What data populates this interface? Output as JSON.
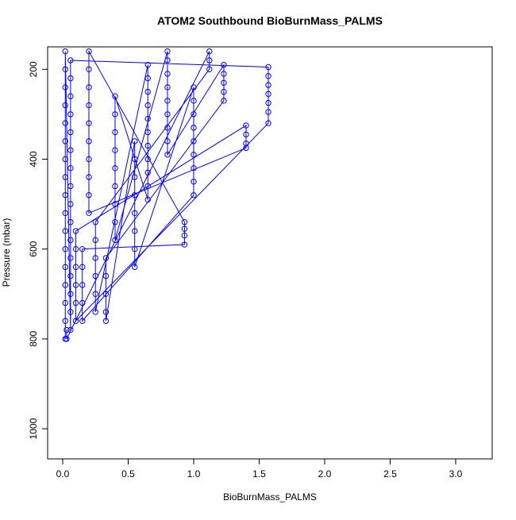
{
  "chart_data": {
    "type": "line",
    "title": "ATOM2 Southbound BioBurnMass_PALMS",
    "x_label": "BioBurnMass_PALMS",
    "y_label": "Pressure (mbar)",
    "xlim": [
      -0.115,
      3.279
    ],
    "ylim": [
      1067,
      150
    ],
    "xticks": [
      {
        "value": 0,
        "label": "0.0"
      },
      0.5,
      {
        "value": 1,
        "label": "1.0"
      },
      1.5,
      {
        "value": 2,
        "label": "2.0"
      },
      2.5,
      {
        "value": 3,
        "label": "3.0"
      }
    ],
    "yticks": [
      200,
      400,
      600,
      800,
      1000
    ],
    "x": [
      0.02,
      0.02,
      0.02,
      0.02,
      0.02,
      0.02,
      0.02,
      0.02,
      0.02,
      0.02,
      0.02,
      0.02,
      0.02,
      0.02,
      0.02,
      0.02,
      0.02,
      0.06,
      0.06,
      0.06,
      0.06,
      0.06,
      0.06,
      0.06,
      0.06,
      0.06,
      0.06,
      0.06,
      0.06,
      0.06,
      0.06,
      0.06,
      0.06,
      1.57,
      1.57,
      1.57,
      1.57,
      1.57,
      1.57,
      1.57,
      0.1,
      0.1,
      0.1,
      0.1,
      0.1,
      0.1,
      1.4,
      1.4,
      1.4,
      1.4,
      0.2,
      0.2,
      0.2,
      0.2,
      0.2,
      0.2,
      0.2,
      0.2,
      0.2,
      0.2,
      0.93,
      0.93,
      0.93,
      0.93,
      0.15,
      0.15,
      0.15,
      0.15,
      0.15,
      1.0,
      1.0,
      1.0,
      1.0,
      1.0,
      1.0,
      1.0,
      1.0,
      1.0,
      0.55,
      0.55,
      0.55,
      0.55,
      0.55,
      0.55,
      0.55,
      0.55,
      0.33,
      0.33,
      0.33,
      0.33,
      0.33,
      1.23,
      1.23,
      1.23,
      1.23,
      1.23,
      0.8,
      0.8,
      0.8,
      0.8,
      0.8,
      0.8,
      0.8,
      0.8,
      0.8,
      0.4,
      0.4,
      0.4,
      0.4,
      0.4,
      0.4,
      0.4,
      0.4,
      0.4,
      0.65,
      0.65,
      0.65,
      0.65,
      0.65,
      0.65,
      0.65,
      0.65,
      0.65,
      0.65,
      0.65,
      0.25,
      0.25,
      0.25,
      0.25,
      0.25,
      0.25,
      1.12,
      1.12,
      1.12,
      0.03,
      0.03
    ],
    "series": [
      {
        "color": "#0000ff",
        "values": [
          800,
          760,
          720,
          680,
          640,
          600,
          560,
          520,
          480,
          440,
          400,
          360,
          320,
          280,
          240,
          200,
          160,
          780,
          740,
          700,
          660,
          620,
          580,
          540,
          500,
          460,
          420,
          380,
          340,
          300,
          260,
          220,
          180,
          195,
          215,
          235,
          255,
          275,
          295,
          320,
          760,
          720,
          680,
          640,
          600,
          560,
          325,
          345,
          365,
          375,
          520,
          480,
          440,
          400,
          360,
          320,
          280,
          240,
          200,
          160,
          540,
          555,
          570,
          590,
          600,
          640,
          680,
          720,
          760,
          480,
          450,
          420,
          390,
          360,
          330,
          300,
          270,
          240,
          640,
          600,
          560,
          520,
          480,
          440,
          400,
          360,
          760,
          740,
          700,
          660,
          620,
          270,
          250,
          230,
          210,
          190,
          390,
          360,
          330,
          300,
          270,
          240,
          210,
          180,
          160,
          580,
          540,
          500,
          460,
          420,
          380,
          340,
          300,
          260,
          490,
          460,
          430,
          400,
          370,
          340,
          310,
          280,
          250,
          220,
          190,
          740,
          700,
          660,
          620,
          580,
          540,
          200,
          180,
          160,
          800,
          780
        ]
      }
    ]
  }
}
